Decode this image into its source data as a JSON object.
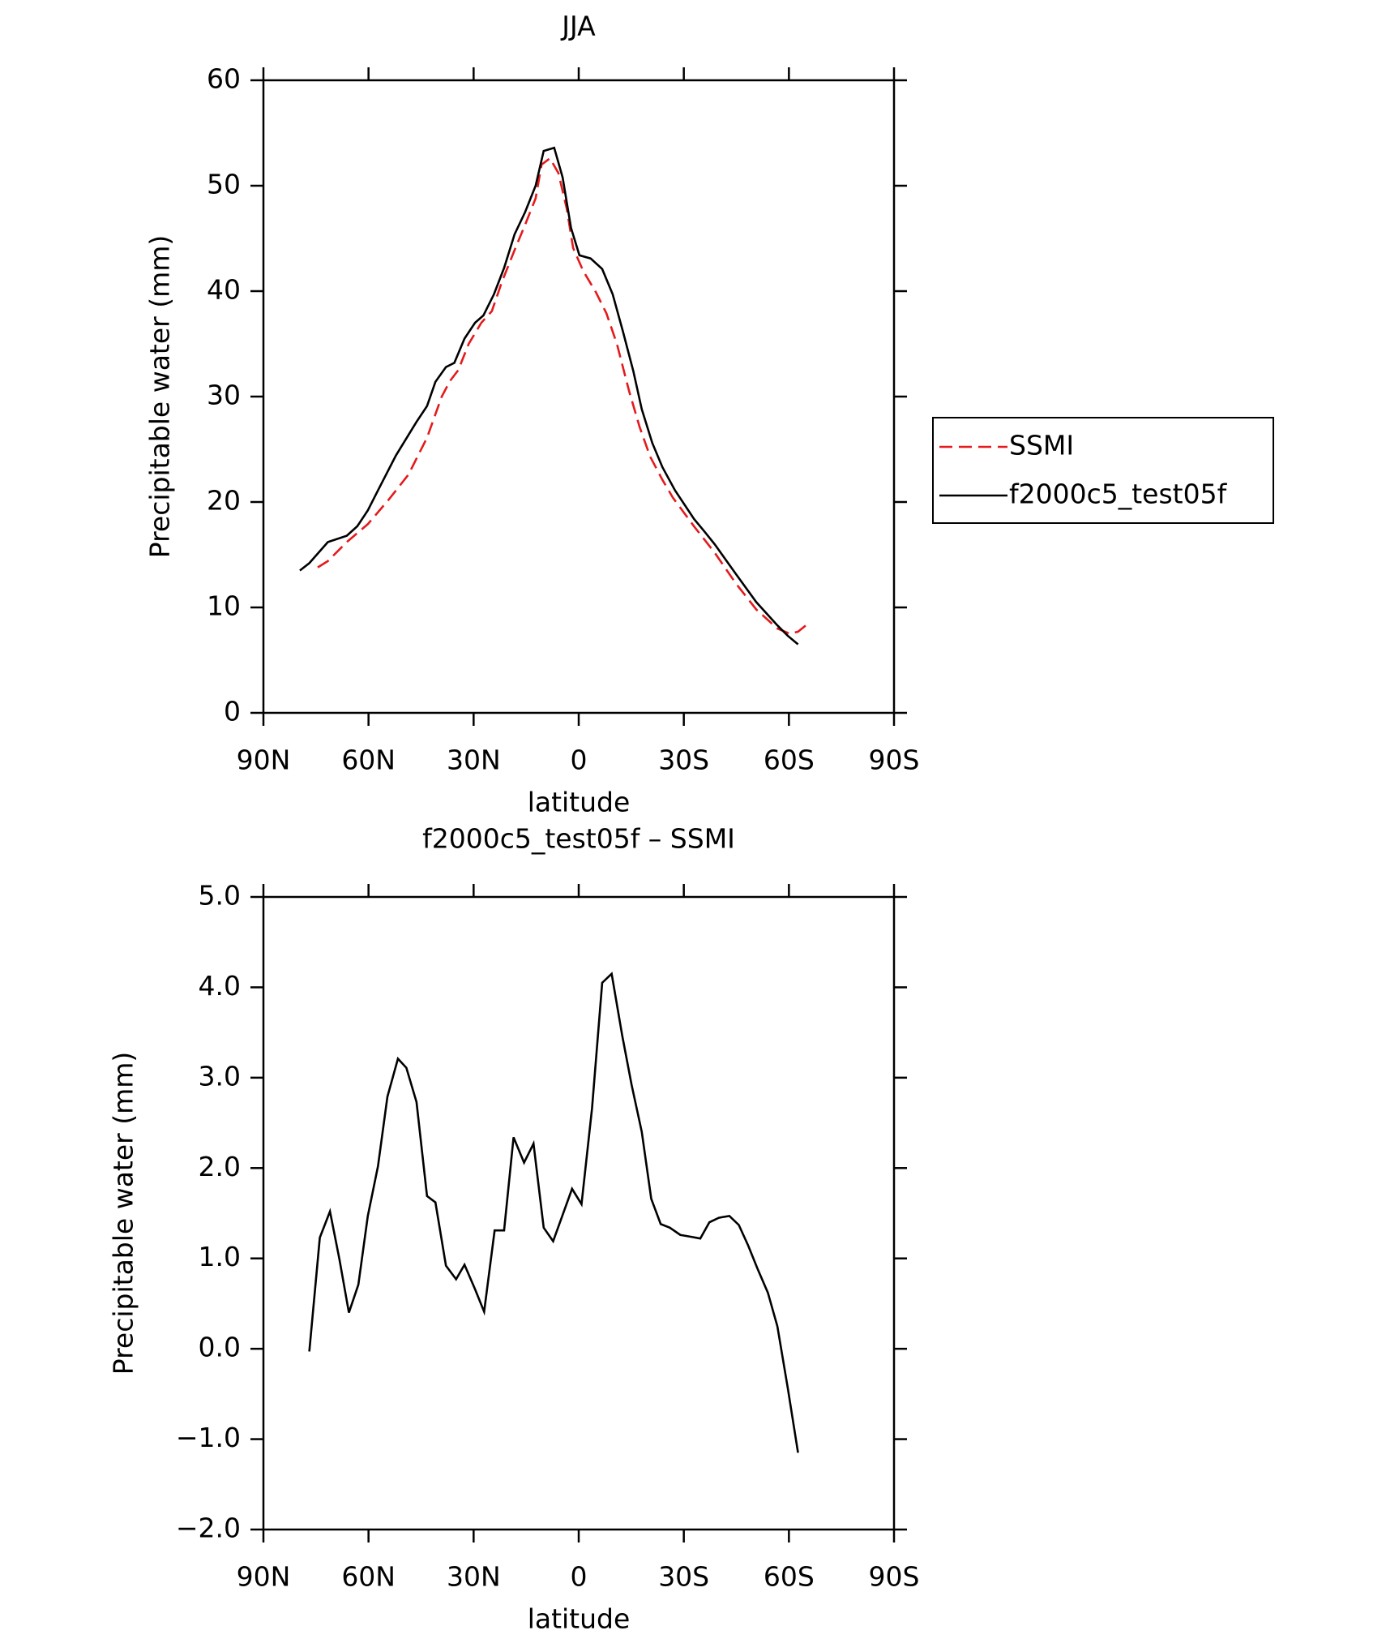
{
  "chart_data": [
    {
      "type": "line",
      "title": "JJA",
      "xlabel": "latitude",
      "ylabel": "Precipitable water (mm)",
      "xlim": [
        90,
        -90
      ],
      "xticks": [
        {
          "value": 90,
          "label": "90N"
        },
        {
          "value": 60,
          "label": "60N"
        },
        {
          "value": 30,
          "label": "30N"
        },
        0,
        {
          "value": -30,
          "label": "30S"
        },
        {
          "value": -60,
          "label": "60S"
        },
        {
          "value": -90,
          "label": "90S"
        }
      ],
      "ylim": [
        0,
        60
      ],
      "yticks": [
        0,
        10,
        20,
        30,
        40,
        50,
        60
      ],
      "legend": "right",
      "series": [
        {
          "name": "SSMI",
          "color": "#e41a1c",
          "style": "dashed",
          "x": [
            74.5,
            71.6,
            66.2,
            60.2,
            54.3,
            48.6,
            43.3,
            39.1,
            36.7,
            34.4,
            31.4,
            27.8,
            24.8,
            21.9,
            18.3,
            15.3,
            12.3,
            10.6,
            8.2,
            5.8,
            3.4,
            1.6,
            -1.3,
            -4.9,
            -7.9,
            -10.9,
            -14.4,
            -17.4,
            -20.4,
            -23.9,
            -26.9,
            -32.9,
            -38.8,
            -44.8,
            -50.7,
            -56.7,
            -60.3,
            -62.6,
            -65.6
          ],
          "values": [
            13.8,
            14.4,
            16.2,
            17.9,
            20.2,
            22.6,
            26.1,
            30.0,
            31.5,
            32.5,
            35.0,
            37.0,
            38.1,
            40.9,
            43.9,
            46.3,
            48.8,
            52.0,
            52.6,
            51.2,
            47.8,
            44.1,
            41.9,
            39.9,
            37.9,
            35.0,
            30.5,
            27.1,
            24.3,
            22.1,
            20.4,
            17.7,
            15.2,
            12.3,
            9.8,
            8.0,
            7.5,
            7.7,
            8.5
          ]
        },
        {
          "name": "f2000c5_test05f",
          "color": "#000000",
          "style": "solid",
          "x": [
            79.6,
            76.9,
            71.6,
            66.2,
            63.2,
            60.2,
            57.3,
            52.2,
            46.3,
            43.3,
            40.9,
            37.9,
            35.5,
            32.6,
            29.6,
            27.2,
            24.2,
            21.3,
            18.3,
            15.3,
            12.3,
            10.0,
            7.0,
            4.6,
            2.2,
            -0.2,
            -3.4,
            -6.7,
            -9.7,
            -12.6,
            -15.6,
            -18.0,
            -21.0,
            -23.9,
            -27.5,
            -32.9,
            -35.9,
            -38.8,
            -44.8,
            -50.7,
            -56.7,
            -59.7,
            -62.6
          ],
          "values": [
            13.5,
            14.2,
            16.2,
            16.8,
            17.7,
            19.2,
            21.1,
            24.4,
            27.6,
            29.1,
            31.4,
            32.8,
            33.2,
            35.5,
            37.0,
            37.7,
            39.7,
            42.2,
            45.4,
            47.5,
            50.0,
            53.3,
            53.6,
            50.8,
            46.0,
            43.4,
            43.1,
            42.1,
            39.7,
            36.2,
            32.4,
            28.8,
            25.6,
            23.3,
            21.1,
            18.4,
            17.2,
            16.0,
            13.2,
            10.5,
            8.3,
            7.3,
            6.5
          ]
        }
      ]
    },
    {
      "type": "line",
      "title": "f2000c5_test05f – SSMI",
      "xlabel": "latitude",
      "ylabel": "Precipitable water (mm)",
      "xlim": [
        90,
        -90
      ],
      "xticks": [
        {
          "value": 90,
          "label": "90N"
        },
        {
          "value": 60,
          "label": "60N"
        },
        {
          "value": 30,
          "label": "30N"
        },
        0,
        {
          "value": -30,
          "label": "30S"
        },
        {
          "value": -60,
          "label": "60S"
        },
        {
          "value": -90,
          "label": "90S"
        }
      ],
      "ylim": [
        -2,
        5
      ],
      "yticks": [
        {
          "value": -2,
          "label": "−2.0"
        },
        {
          "value": -1,
          "label": "−1.0"
        },
        {
          "value": 0,
          "label": "0.0"
        },
        {
          "value": 1,
          "label": "1.0"
        },
        {
          "value": 2,
          "label": "2.0"
        },
        {
          "value": 3,
          "label": "3.0"
        },
        {
          "value": 4,
          "label": "4.0"
        },
        {
          "value": 5,
          "label": "5.0"
        }
      ],
      "color": "#000000",
      "x": [
        76.9,
        73.9,
        71.0,
        68.3,
        65.6,
        62.9,
        60.2,
        57.3,
        54.6,
        51.6,
        49.2,
        46.3,
        43.3,
        40.9,
        37.9,
        35.0,
        32.6,
        29.6,
        27.0,
        24.0,
        21.3,
        18.6,
        15.6,
        12.9,
        10.0,
        7.3,
        4.6,
        1.9,
        -0.8,
        -3.8,
        -6.7,
        -9.4,
        -12.4,
        -15.1,
        -18.0,
        -20.7,
        -23.4,
        -26.0,
        -29.0,
        -32.0,
        -34.7,
        -37.3,
        -40.0,
        -43.0,
        -45.7,
        -48.4,
        -51.0,
        -54.0,
        -56.7,
        -59.7,
        -62.6
      ],
      "values": [
        -0.03,
        1.23,
        1.52,
        0.99,
        0.4,
        0.71,
        1.47,
        2.02,
        2.79,
        3.21,
        3.11,
        2.73,
        1.69,
        1.62,
        0.92,
        0.77,
        0.93,
        0.66,
        0.41,
        1.31,
        1.31,
        2.34,
        2.06,
        2.27,
        1.34,
        1.19,
        1.48,
        1.77,
        1.6,
        2.66,
        4.05,
        4.15,
        3.47,
        2.92,
        2.4,
        1.66,
        1.38,
        1.34,
        1.26,
        1.24,
        1.22,
        1.4,
        1.45,
        1.47,
        1.37,
        1.14,
        0.89,
        0.62,
        0.25,
        -0.44,
        -1.15
      ]
    }
  ]
}
